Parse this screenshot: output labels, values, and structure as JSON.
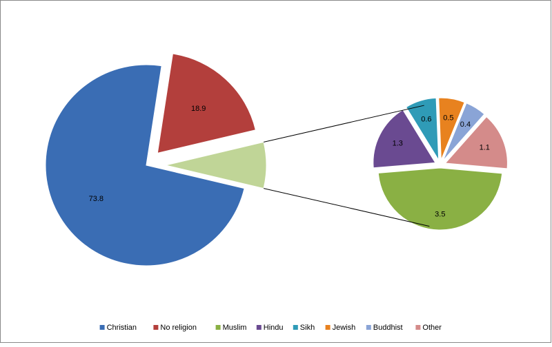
{
  "chart_data": {
    "type": "pie-of-pie",
    "categories": [
      "Christian",
      "No religion",
      "Muslim",
      "Hindu",
      "Sikh",
      "Jewish",
      "Buddhist",
      "Other"
    ],
    "values": [
      73.8,
      18.9,
      3.5,
      1.3,
      0.6,
      0.5,
      0.4,
      1.1
    ],
    "colors": [
      "#3a6db4",
      "#b33f3c",
      "#8ab044",
      "#6a4a91",
      "#2f9bb7",
      "#e8821f",
      "#8aa4d6",
      "#d48b8a"
    ],
    "group_color": "#c0d597",
    "legend": "bottom"
  }
}
